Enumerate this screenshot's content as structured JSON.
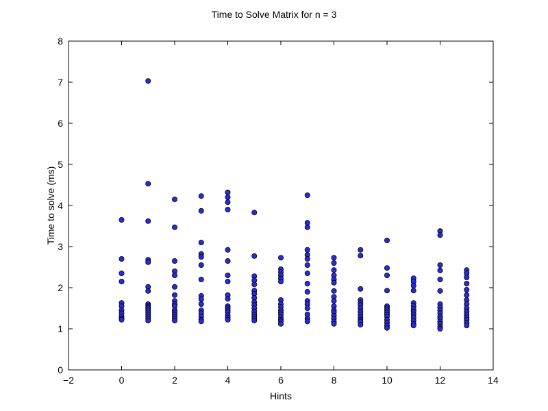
{
  "chart_data": {
    "type": "scatter",
    "title": "Time to Solve Matrix for n = 3",
    "xlabel": "Hints",
    "ylabel": "Time to solve (ms)",
    "xlim": [
      -2,
      14
    ],
    "ylim": [
      0,
      8
    ],
    "xticks": [
      -2,
      0,
      2,
      4,
      6,
      8,
      10,
      12,
      14
    ],
    "xtick_labels": [
      "−2",
      "0",
      "2",
      "4",
      "6",
      "8",
      "10",
      "12",
      "14"
    ],
    "yticks": [
      0,
      1,
      2,
      3,
      4,
      5,
      6,
      7,
      8
    ],
    "ytick_labels": [
      "0",
      "1",
      "2",
      "3",
      "4",
      "5",
      "6",
      "7",
      "8"
    ],
    "grid": false,
    "marker_fill": "#2a2ad6",
    "marker_edge": "#000000",
    "points": [
      [
        0,
        3.65
      ],
      [
        0,
        2.7
      ],
      [
        0,
        2.35
      ],
      [
        0,
        2.15
      ],
      [
        0,
        1.63
      ],
      [
        0,
        1.55
      ],
      [
        0,
        1.45
      ],
      [
        0,
        1.38
      ],
      [
        0,
        1.3
      ],
      [
        0,
        1.25
      ],
      [
        0,
        1.22
      ],
      [
        1,
        7.03
      ],
      [
        1,
        4.53
      ],
      [
        1,
        3.62
      ],
      [
        1,
        2.68
      ],
      [
        1,
        2.62
      ],
      [
        1,
        2.02
      ],
      [
        1,
        1.92
      ],
      [
        1,
        1.6
      ],
      [
        1,
        1.57
      ],
      [
        1,
        1.53
      ],
      [
        1,
        1.5
      ],
      [
        1,
        1.45
      ],
      [
        1,
        1.4
      ],
      [
        1,
        1.35
      ],
      [
        1,
        1.3
      ],
      [
        1,
        1.25
      ],
      [
        1,
        1.2
      ],
      [
        2,
        4.15
      ],
      [
        2,
        3.47
      ],
      [
        2,
        2.65
      ],
      [
        2,
        2.4
      ],
      [
        2,
        2.3
      ],
      [
        2,
        2.02
      ],
      [
        2,
        1.82
      ],
      [
        2,
        1.68
      ],
      [
        2,
        1.6
      ],
      [
        2,
        1.55
      ],
      [
        2,
        1.45
      ],
      [
        2,
        1.4
      ],
      [
        2,
        1.35
      ],
      [
        2,
        1.3
      ],
      [
        2,
        1.25
      ],
      [
        2,
        1.2
      ],
      [
        3,
        4.23
      ],
      [
        3,
        3.87
      ],
      [
        3,
        3.1
      ],
      [
        3,
        2.82
      ],
      [
        3,
        2.75
      ],
      [
        3,
        2.55
      ],
      [
        3,
        2.2
      ],
      [
        3,
        1.8
      ],
      [
        3,
        1.72
      ],
      [
        3,
        1.6
      ],
      [
        3,
        1.45
      ],
      [
        3,
        1.38
      ],
      [
        3,
        1.3
      ],
      [
        3,
        1.22
      ],
      [
        3,
        1.18
      ],
      [
        4,
        4.32
      ],
      [
        4,
        4.2
      ],
      [
        4,
        4.08
      ],
      [
        4,
        3.9
      ],
      [
        4,
        2.92
      ],
      [
        4,
        2.65
      ],
      [
        4,
        2.3
      ],
      [
        4,
        2.15
      ],
      [
        4,
        1.82
      ],
      [
        4,
        1.73
      ],
      [
        4,
        1.55
      ],
      [
        4,
        1.5
      ],
      [
        4,
        1.45
      ],
      [
        4,
        1.4
      ],
      [
        4,
        1.33
      ],
      [
        4,
        1.27
      ],
      [
        4,
        1.22
      ],
      [
        5,
        3.83
      ],
      [
        5,
        2.77
      ],
      [
        5,
        2.28
      ],
      [
        5,
        2.18
      ],
      [
        5,
        2.08
      ],
      [
        5,
        1.93
      ],
      [
        5,
        1.85
      ],
      [
        5,
        1.75
      ],
      [
        5,
        1.65
      ],
      [
        5,
        1.58
      ],
      [
        5,
        1.5
      ],
      [
        5,
        1.42
      ],
      [
        5,
        1.35
      ],
      [
        5,
        1.3
      ],
      [
        5,
        1.25
      ],
      [
        5,
        1.2
      ],
      [
        6,
        2.73
      ],
      [
        6,
        2.45
      ],
      [
        6,
        2.38
      ],
      [
        6,
        2.3
      ],
      [
        6,
        2.22
      ],
      [
        6,
        2.15
      ],
      [
        6,
        1.7
      ],
      [
        6,
        1.6
      ],
      [
        6,
        1.53
      ],
      [
        6,
        1.45
      ],
      [
        6,
        1.4
      ],
      [
        6,
        1.35
      ],
      [
        6,
        1.28
      ],
      [
        6,
        1.22
      ],
      [
        6,
        1.18
      ],
      [
        6,
        1.12
      ],
      [
        7,
        4.25
      ],
      [
        7,
        3.58
      ],
      [
        7,
        3.47
      ],
      [
        7,
        2.92
      ],
      [
        7,
        2.8
      ],
      [
        7,
        2.7
      ],
      [
        7,
        2.55
      ],
      [
        7,
        2.35
      ],
      [
        7,
        2.1
      ],
      [
        7,
        1.9
      ],
      [
        7,
        1.68
      ],
      [
        7,
        1.6
      ],
      [
        7,
        1.5
      ],
      [
        7,
        1.35
      ],
      [
        7,
        1.25
      ],
      [
        7,
        1.18
      ],
      [
        8,
        2.73
      ],
      [
        8,
        2.6
      ],
      [
        8,
        2.43
      ],
      [
        8,
        2.3
      ],
      [
        8,
        2.2
      ],
      [
        8,
        2.12
      ],
      [
        8,
        1.92
      ],
      [
        8,
        1.78
      ],
      [
        8,
        1.68
      ],
      [
        8,
        1.55
      ],
      [
        8,
        1.45
      ],
      [
        8,
        1.4
      ],
      [
        8,
        1.32
      ],
      [
        8,
        1.25
      ],
      [
        8,
        1.18
      ],
      [
        8,
        1.12
      ],
      [
        9,
        2.92
      ],
      [
        9,
        2.78
      ],
      [
        9,
        1.97
      ],
      [
        9,
        1.7
      ],
      [
        9,
        1.63
      ],
      [
        9,
        1.58
      ],
      [
        9,
        1.5
      ],
      [
        9,
        1.42
      ],
      [
        9,
        1.35
      ],
      [
        9,
        1.28
      ],
      [
        9,
        1.22
      ],
      [
        9,
        1.17
      ],
      [
        9,
        1.1
      ],
      [
        10,
        3.15
      ],
      [
        10,
        2.48
      ],
      [
        10,
        2.3
      ],
      [
        10,
        1.93
      ],
      [
        10,
        1.55
      ],
      [
        10,
        1.5
      ],
      [
        10,
        1.45
      ],
      [
        10,
        1.4
      ],
      [
        10,
        1.35
      ],
      [
        10,
        1.3
      ],
      [
        10,
        1.22
      ],
      [
        10,
        1.15
      ],
      [
        10,
        1.08
      ],
      [
        10,
        1.02
      ],
      [
        11,
        2.23
      ],
      [
        11,
        2.15
      ],
      [
        11,
        2.05
      ],
      [
        11,
        1.93
      ],
      [
        11,
        1.63
      ],
      [
        11,
        1.55
      ],
      [
        11,
        1.48
      ],
      [
        11,
        1.42
      ],
      [
        11,
        1.35
      ],
      [
        11,
        1.28
      ],
      [
        11,
        1.2
      ],
      [
        11,
        1.12
      ],
      [
        11,
        1.08
      ],
      [
        12,
        3.38
      ],
      [
        12,
        3.28
      ],
      [
        12,
        2.55
      ],
      [
        12,
        2.42
      ],
      [
        12,
        2.2
      ],
      [
        12,
        1.92
      ],
      [
        12,
        1.6
      ],
      [
        12,
        1.52
      ],
      [
        12,
        1.45
      ],
      [
        12,
        1.38
      ],
      [
        12,
        1.3
      ],
      [
        12,
        1.25
      ],
      [
        12,
        1.18
      ],
      [
        12,
        1.12
      ],
      [
        12,
        1.05
      ],
      [
        12,
        1.0
      ],
      [
        13,
        2.43
      ],
      [
        13,
        2.35
      ],
      [
        13,
        2.25
      ],
      [
        13,
        2.1
      ],
      [
        13,
        1.95
      ],
      [
        13,
        1.82
      ],
      [
        13,
        1.7
      ],
      [
        13,
        1.6
      ],
      [
        13,
        1.5
      ],
      [
        13,
        1.42
      ],
      [
        13,
        1.35
      ],
      [
        13,
        1.28
      ],
      [
        13,
        1.22
      ],
      [
        13,
        1.15
      ],
      [
        13,
        1.08
      ]
    ]
  }
}
